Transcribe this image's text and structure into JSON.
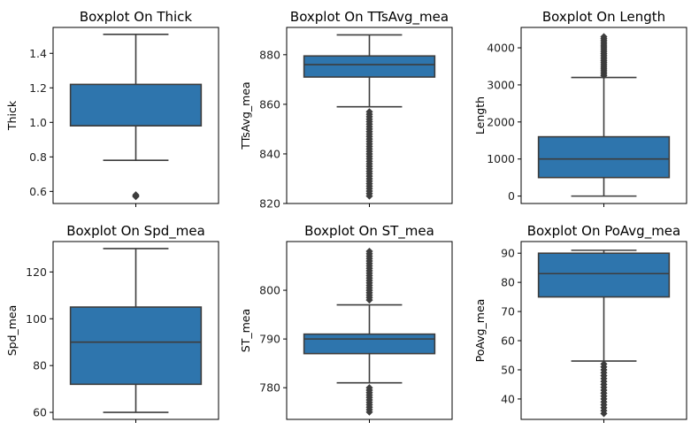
{
  "chart_data": [
    {
      "type": "boxplot",
      "title": "Boxplot On Thick",
      "xlabel": "",
      "ylabel": "Thick",
      "ylim": [
        0.53,
        1.55
      ],
      "yticks": [
        0.6,
        0.8,
        1.0,
        1.2,
        1.4
      ],
      "tick_labels": [
        "0.6",
        "0.8",
        "1.0",
        "1.2",
        "1.4"
      ],
      "stats": {
        "whisker_low": 0.78,
        "q1": 0.98,
        "median": 0.98,
        "q3": 1.22,
        "whisker_high": 1.51
      },
      "outliers": [
        0.57,
        0.575,
        0.58
      ],
      "color": "#2e75ad"
    },
    {
      "type": "boxplot",
      "title": "Boxplot On TTsAvg_mea",
      "xlabel": "",
      "ylabel": "TTsAvg_mea",
      "ylim": [
        820,
        891
      ],
      "yticks": [
        820,
        840,
        860,
        880
      ],
      "tick_labels": [
        "820",
        "840",
        "860",
        "880"
      ],
      "stats": {
        "whisker_low": 859,
        "q1": 871,
        "median": 876,
        "q3": 879.5,
        "whisker_high": 888
      },
      "outliers": [
        823,
        824,
        825,
        826,
        827,
        828,
        829,
        830,
        831,
        832,
        833,
        834,
        835,
        836,
        837,
        838,
        839,
        840,
        841,
        842,
        843,
        844,
        845,
        846,
        847,
        848,
        849,
        850,
        851,
        852,
        853,
        854,
        855,
        856,
        857
      ],
      "color": "#2e75ad"
    },
    {
      "type": "boxplot",
      "title": "Boxplot On Length",
      "xlabel": "",
      "ylabel": "Length",
      "ylim": [
        -200,
        4550
      ],
      "yticks": [
        0,
        1000,
        2000,
        3000,
        4000
      ],
      "tick_labels": [
        "0",
        "1000",
        "2000",
        "3000",
        "4000"
      ],
      "stats": {
        "whisker_low": 0,
        "q1": 500,
        "median": 1000,
        "q3": 1600,
        "whisker_high": 3200
      },
      "outliers": [
        3250,
        3300,
        3350,
        3400,
        3450,
        3500,
        3550,
        3600,
        3650,
        3700,
        3750,
        3800,
        3850,
        3900,
        3950,
        4000,
        4050,
        4100,
        4150,
        4200,
        4250,
        4300
      ],
      "color": "#2e75ad"
    },
    {
      "type": "boxplot",
      "title": "Boxplot On Spd_mea",
      "xlabel": "",
      "ylabel": "Spd_mea",
      "ylim": [
        57,
        133
      ],
      "yticks": [
        60,
        80,
        100,
        120
      ],
      "tick_labels": [
        "60",
        "80",
        "100",
        "120"
      ],
      "stats": {
        "whisker_low": 60,
        "q1": 72,
        "median": 90,
        "q3": 105,
        "whisker_high": 130
      },
      "outliers": [],
      "color": "#2e75ad"
    },
    {
      "type": "boxplot",
      "title": "Boxplot On ST_mea",
      "xlabel": "",
      "ylabel": "ST_mea",
      "ylim": [
        773.5,
        810
      ],
      "yticks": [
        780,
        790,
        800
      ],
      "tick_labels": [
        "780",
        "790",
        "800"
      ],
      "stats": {
        "whisker_low": 781,
        "q1": 787,
        "median": 790,
        "q3": 791,
        "whisker_high": 797
      },
      "outliers": [
        775,
        775.5,
        776,
        776.5,
        777,
        777.5,
        778,
        778.5,
        779,
        779.5,
        780,
        798,
        798.5,
        799,
        799.5,
        800,
        800.5,
        801,
        801.5,
        802,
        802.5,
        803,
        803.5,
        804,
        804.5,
        805,
        805.5,
        806,
        806.5,
        807,
        807.5,
        808
      ],
      "color": "#2e75ad"
    },
    {
      "type": "boxplot",
      "title": "Boxplot On PoAvg_mea",
      "xlabel": "",
      "ylabel": "PoAvg_mea",
      "ylim": [
        33,
        94
      ],
      "yticks": [
        40,
        50,
        60,
        70,
        80,
        90
      ],
      "tick_labels": [
        "40",
        "50",
        "60",
        "70",
        "80",
        "90"
      ],
      "stats": {
        "whisker_low": 53,
        "q1": 75,
        "median": 83,
        "q3": 90,
        "whisker_high": 91
      },
      "outliers": [
        35,
        36,
        37,
        38,
        39,
        40,
        41,
        42,
        43,
        44,
        45,
        46,
        47,
        48,
        49,
        50,
        51,
        52
      ],
      "color": "#2e75ad"
    }
  ]
}
